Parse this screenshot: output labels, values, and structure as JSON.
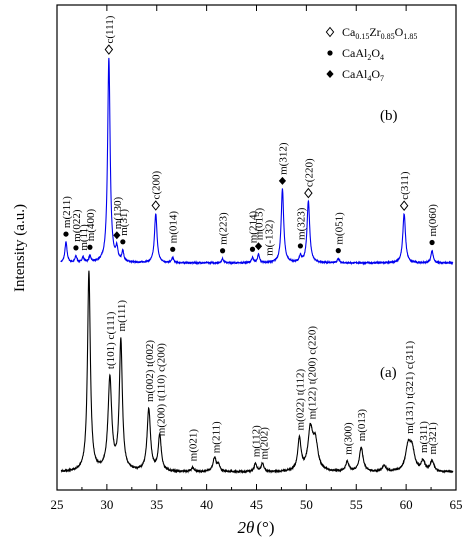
{
  "chart_data": {
    "type": "line",
    "xlabel_italic": "2θ",
    "xlabel_unit": "(°)",
    "ylabel": "Intensity  (a.u.)",
    "xlim": [
      25,
      65
    ],
    "xticks": [
      "25",
      "30",
      "35",
      "40",
      "45",
      "50",
      "55",
      "60",
      "65"
    ],
    "grid": false,
    "legend_position": "top-right",
    "legend": [
      {
        "symbol": "open-diamond",
        "parts": [
          "Ca",
          "0.15",
          "Zr",
          "0.85",
          "O",
          "1.85"
        ]
      },
      {
        "symbol": "dot",
        "parts": [
          "CaAl",
          "2",
          "O",
          "4"
        ]
      },
      {
        "symbol": "filled-diamond",
        "parts": [
          "CaAl",
          "4",
          "O",
          "7"
        ]
      }
    ],
    "series": [
      {
        "name": "(b)",
        "color": "#0000ee",
        "baseline": 0.0,
        "noise": 0.003,
        "peaks": [
          {
            "x": 25.9,
            "h": 0.1,
            "w": 0.13
          },
          {
            "x": 26.9,
            "h": 0.03,
            "w": 0.12
          },
          {
            "x": 27.6,
            "h": 0.025,
            "w": 0.12
          },
          {
            "x": 28.3,
            "h": 0.03,
            "w": 0.12
          },
          {
            "x": 30.2,
            "h": 1.0,
            "w": 0.15
          },
          {
            "x": 31.0,
            "h": 0.06,
            "w": 0.12
          },
          {
            "x": 31.6,
            "h": 0.05,
            "w": 0.12
          },
          {
            "x": 34.9,
            "h": 0.24,
            "w": 0.15
          },
          {
            "x": 36.6,
            "h": 0.025,
            "w": 0.12
          },
          {
            "x": 41.6,
            "h": 0.02,
            "w": 0.12
          },
          {
            "x": 44.6,
            "h": 0.025,
            "w": 0.12
          },
          {
            "x": 45.2,
            "h": 0.04,
            "w": 0.12
          },
          {
            "x": 47.6,
            "h": 0.36,
            "w": 0.15
          },
          {
            "x": 49.4,
            "h": 0.03,
            "w": 0.12
          },
          {
            "x": 50.2,
            "h": 0.3,
            "w": 0.16
          },
          {
            "x": 53.2,
            "h": 0.02,
            "w": 0.12
          },
          {
            "x": 59.8,
            "h": 0.24,
            "w": 0.16
          },
          {
            "x": 62.6,
            "h": 0.06,
            "w": 0.13
          }
        ],
        "labels": [
          {
            "x": 25.9,
            "text": "m(211)",
            "sym": "dot",
            "lift": 62
          },
          {
            "x": 26.9,
            "text": "m(022)",
            "sym": "dot",
            "lift": 30
          },
          {
            "x": 27.6,
            "text": "m(11)",
            "sym": "",
            "lift": 20
          },
          {
            "x": 28.3,
            "text": "m(400)",
            "sym": "dot",
            "lift": 22
          },
          {
            "x": 30.2,
            "text": "c(111)",
            "sym": "open-diamond",
            "lift": 180
          },
          {
            "x": 31.0,
            "text": "m(130)",
            "sym": "filled-diamond",
            "lift": 30
          },
          {
            "x": 31.6,
            "text": "m(31)",
            "sym": "dot",
            "lift": 26
          },
          {
            "x": 34.9,
            "text": "c(200)",
            "sym": "open-diamond",
            "lift": 58
          },
          {
            "x": 36.6,
            "text": "m(014)",
            "sym": "dot",
            "lift": 24
          },
          {
            "x": 41.6,
            "text": "m(223)",
            "sym": "dot",
            "lift": 24
          },
          {
            "x": 44.6,
            "text": "m(214)",
            "sym": "dot",
            "lift": 22
          },
          {
            "x": 45.2,
            "text": "m(015)",
            "sym": "filled-diamond",
            "lift": 25
          },
          {
            "x": 46.2,
            "text": "m(-132)",
            "sym": "",
            "lift": 32
          },
          {
            "x": 47.6,
            "text": "m(312)",
            "sym": "filled-diamond",
            "lift": 86
          },
          {
            "x": 49.4,
            "text": "m(323)",
            "sym": "dot",
            "lift": 22
          },
          {
            "x": 50.2,
            "text": "c(220)",
            "sym": "open-diamond",
            "lift": 74
          },
          {
            "x": 53.2,
            "text": "m(051)",
            "sym": "dot",
            "lift": 22
          },
          {
            "x": 59.8,
            "text": "c(311)",
            "sym": "open-diamond",
            "lift": 58
          },
          {
            "x": 62.6,
            "text": "m(060)",
            "sym": "dot",
            "lift": 26
          }
        ]
      },
      {
        "name": "(a)",
        "color": "#000000",
        "baseline": 0.0,
        "noise": 0.004,
        "peaks": [
          {
            "x": 28.2,
            "h": 1.0,
            "w": 0.17
          },
          {
            "x": 30.3,
            "h": 0.46,
            "w": 0.22
          },
          {
            "x": 31.4,
            "h": 0.65,
            "w": 0.18
          },
          {
            "x": 34.2,
            "h": 0.31,
            "w": 0.2
          },
          {
            "x": 35.3,
            "h": 0.18,
            "w": 0.18
          },
          {
            "x": 38.6,
            "h": 0.02,
            "w": 0.15
          },
          {
            "x": 40.8,
            "h": 0.07,
            "w": 0.2
          },
          {
            "x": 41.2,
            "h": 0.03,
            "w": 0.15
          },
          {
            "x": 44.9,
            "h": 0.04,
            "w": 0.16
          },
          {
            "x": 45.6,
            "h": 0.04,
            "w": 0.16
          },
          {
            "x": 49.3,
            "h": 0.16,
            "w": 0.2
          },
          {
            "x": 50.4,
            "h": 0.2,
            "w": 0.28
          },
          {
            "x": 50.9,
            "h": 0.14,
            "w": 0.3
          },
          {
            "x": 54.1,
            "h": 0.05,
            "w": 0.18
          },
          {
            "x": 55.5,
            "h": 0.12,
            "w": 0.22
          },
          {
            "x": 57.8,
            "h": 0.03,
            "w": 0.2
          },
          {
            "x": 60.2,
            "h": 0.12,
            "w": 0.3
          },
          {
            "x": 60.6,
            "h": 0.1,
            "w": 0.3
          },
          {
            "x": 61.7,
            "h": 0.05,
            "w": 0.22
          },
          {
            "x": 62.6,
            "h": 0.05,
            "w": 0.22
          }
        ],
        "labels": [
          {
            "x": 30.3,
            "text": "t(101) c(111)",
            "lift": 22
          },
          {
            "x": 31.4,
            "text": "m(111)",
            "lift": 22
          },
          {
            "x": 34.2,
            "text": "m(002) t(002)",
            "lift": 18
          },
          {
            "x": 35.4,
            "text": "m(200) t(110) c(200)",
            "lift": 18
          },
          {
            "x": 38.6,
            "text": "m(021)",
            "lift": 20
          },
          {
            "x": 40.9,
            "text": "m(211)",
            "lift": 20
          },
          {
            "x": 44.9,
            "text": "m(112)",
            "lift": 20
          },
          {
            "x": 45.7,
            "text": "m(202)",
            "lift": 20
          },
          {
            "x": 49.3,
            "text": "m(022) t(112)",
            "lift": 20
          },
          {
            "x": 50.5,
            "text": "m(122) t(200) c(220)",
            "lift": 18
          },
          {
            "x": 54.1,
            "text": "m(300)",
            "lift": 20
          },
          {
            "x": 55.5,
            "text": "m(013)",
            "lift": 20
          },
          {
            "x": 60.3,
            "text": "m(131) t(321) c(311)",
            "lift": 18
          },
          {
            "x": 61.7,
            "text": "m(311)",
            "lift": 20
          },
          {
            "x": 62.6,
            "text": "m(321)",
            "lift": 20
          }
        ]
      }
    ]
  }
}
